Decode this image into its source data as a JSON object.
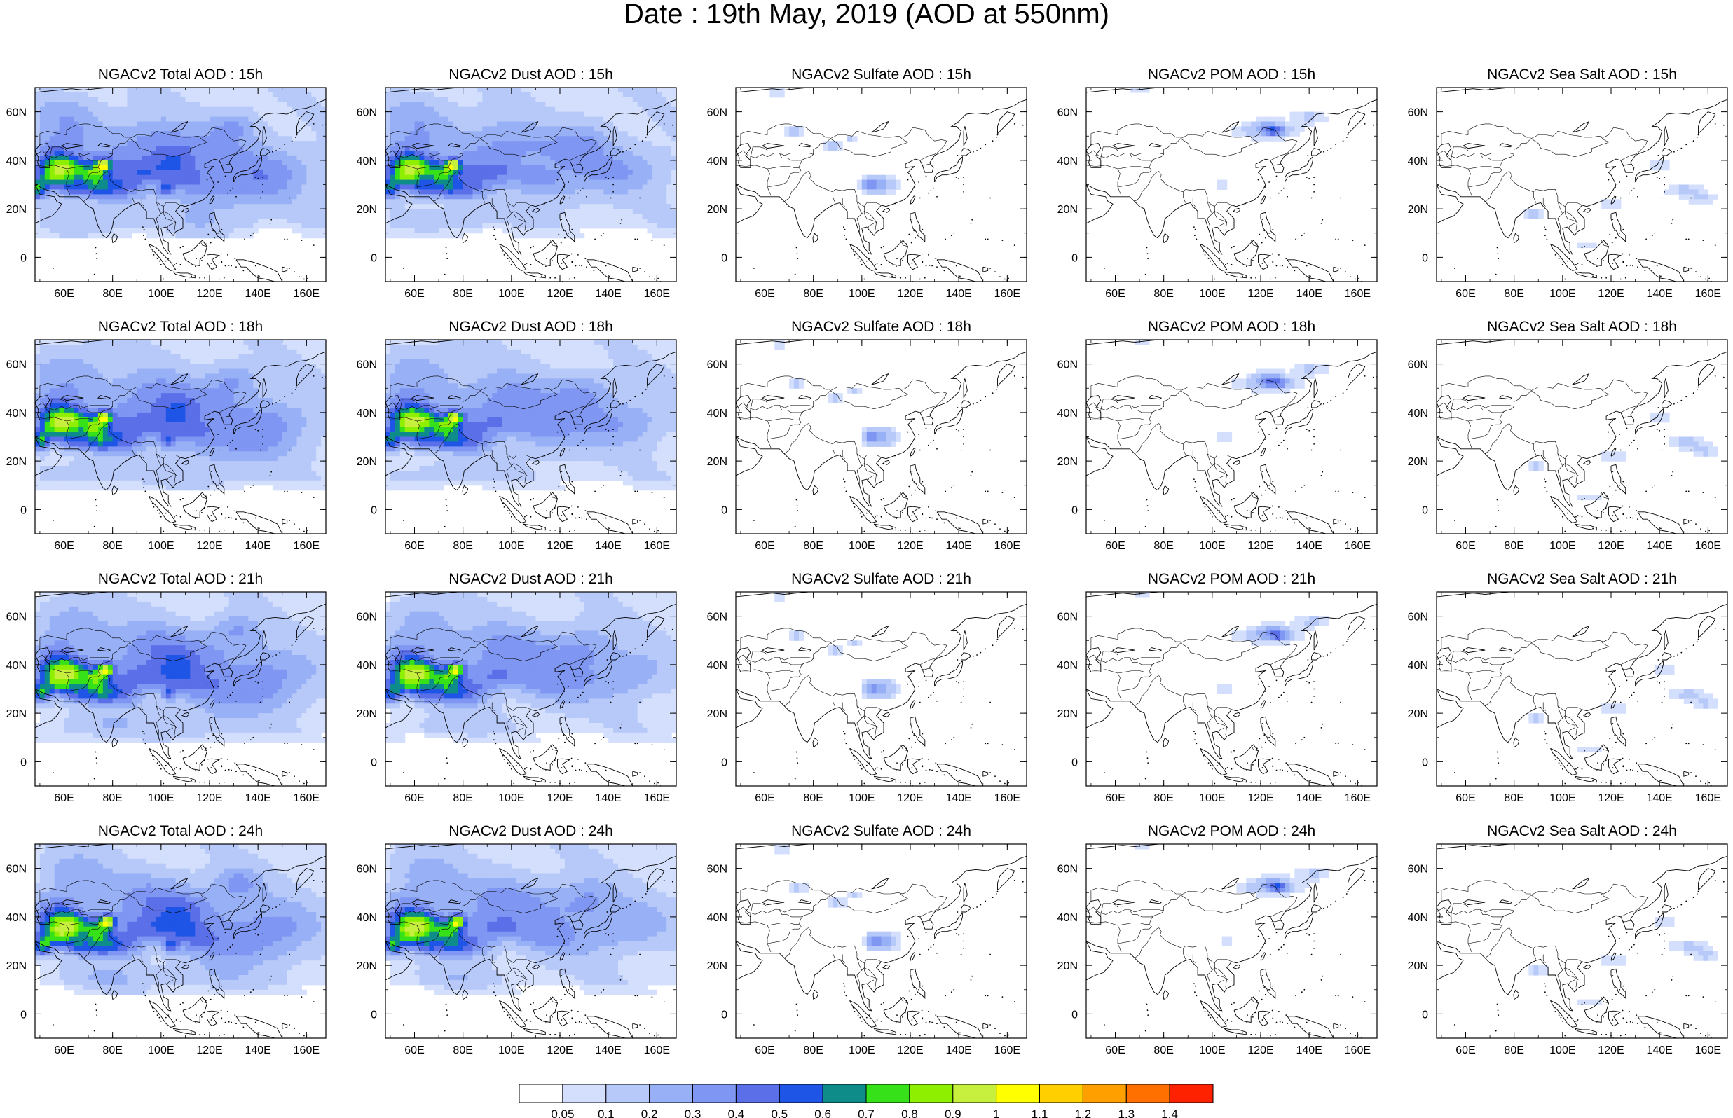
{
  "figure_title": "Date : 19th May, 2019 (AOD at 550nm)",
  "panels": [
    {
      "title": "NGACv2 Total AOD : 15h",
      "species": "total",
      "hour": 15
    },
    {
      "title": "NGACv2 Dust AOD : 15h",
      "species": "dust",
      "hour": 15
    },
    {
      "title": "NGACv2 Sulfate AOD : 15h",
      "species": "sulfate",
      "hour": 15
    },
    {
      "title": "NGACv2 POM AOD : 15h",
      "species": "pom",
      "hour": 15
    },
    {
      "title": "NGACv2 Sea Salt AOD : 15h",
      "species": "seasalt",
      "hour": 15
    },
    {
      "title": "NGACv2 Total AOD : 18h",
      "species": "total",
      "hour": 18
    },
    {
      "title": "NGACv2 Dust AOD : 18h",
      "species": "dust",
      "hour": 18
    },
    {
      "title": "NGACv2 Sulfate AOD : 18h",
      "species": "sulfate",
      "hour": 18
    },
    {
      "title": "NGACv2 POM AOD : 18h",
      "species": "pom",
      "hour": 18
    },
    {
      "title": "NGACv2 Sea Salt AOD : 18h",
      "species": "seasalt",
      "hour": 18
    },
    {
      "title": "NGACv2 Total AOD : 21h",
      "species": "total",
      "hour": 21
    },
    {
      "title": "NGACv2 Dust AOD : 21h",
      "species": "dust",
      "hour": 21
    },
    {
      "title": "NGACv2 Sulfate AOD : 21h",
      "species": "sulfate",
      "hour": 21
    },
    {
      "title": "NGACv2 POM AOD : 21h",
      "species": "pom",
      "hour": 21
    },
    {
      "title": "NGACv2 Sea Salt AOD : 21h",
      "species": "seasalt",
      "hour": 21
    },
    {
      "title": "NGACv2 Total AOD : 24h",
      "species": "total",
      "hour": 24
    },
    {
      "title": "NGACv2 Dust AOD : 24h",
      "species": "dust",
      "hour": 24
    },
    {
      "title": "NGACv2 Sulfate AOD : 24h",
      "species": "sulfate",
      "hour": 24
    },
    {
      "title": "NGACv2 POM AOD : 24h",
      "species": "pom",
      "hour": 24
    },
    {
      "title": "NGACv2 Sea Salt  AOD : 24h",
      "species": "seasalt",
      "hour": 24
    }
  ],
  "map_extent": {
    "lon": [
      48,
      168
    ],
    "lat": [
      -10,
      70
    ]
  },
  "lon_ticks": [
    "60E",
    "80E",
    "100E",
    "120E",
    "140E",
    "160E"
  ],
  "lon_tick_values": [
    60,
    80,
    100,
    120,
    140,
    160
  ],
  "lat_ticks": [
    "60N",
    "40N",
    "20N",
    "0"
  ],
  "lat_tick_values": [
    60,
    40,
    20,
    0
  ],
  "colorbar": {
    "levels": [
      "0.05",
      "0.1",
      "0.2",
      "0.3",
      "0.4",
      "0.5",
      "0.6",
      "0.7",
      "0.8",
      "0.9",
      "1",
      "1.1",
      "1.2",
      "1.3",
      "1.4"
    ],
    "colors": [
      "#ffffff",
      "#d3dffc",
      "#b7c9f8",
      "#98b0f6",
      "#7f97f2",
      "#5b6fe8",
      "#1f55e6",
      "#0d8c8a",
      "#37e119",
      "#8ef000",
      "#c7ef3e",
      "#ffff00",
      "#ffcf00",
      "#ffa000",
      "#ff7000",
      "#ff2200"
    ]
  }
}
